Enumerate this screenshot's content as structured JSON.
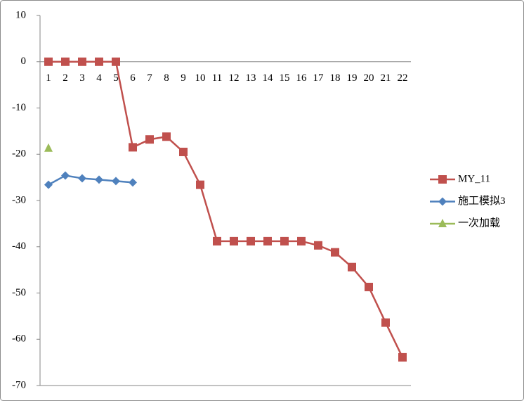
{
  "chart_data": {
    "type": "line",
    "categories": [
      "1",
      "2",
      "3",
      "4",
      "5",
      "6",
      "7",
      "8",
      "9",
      "10",
      "11",
      "12",
      "13",
      "14",
      "15",
      "16",
      "17",
      "18",
      "19",
      "20",
      "21",
      "22"
    ],
    "series": [
      {
        "name": "MY_11",
        "color": "#c0504d",
        "marker": "square",
        "values": [
          0,
          0,
          0,
          0,
          0,
          -18.5,
          -16.8,
          -16.2,
          -19.5,
          -26.6,
          -38.8,
          -38.8,
          -38.8,
          -38.8,
          -38.8,
          -38.8,
          -39.7,
          -41.2,
          -44.4,
          -48.7,
          -56.4,
          -63.9
        ]
      },
      {
        "name": "施工模拟3",
        "color": "#4f81bd",
        "marker": "diamond",
        "values": [
          -26.6,
          -24.6,
          -25.2,
          -25.5,
          -25.8,
          -26.1,
          null,
          null,
          null,
          null,
          null,
          null,
          null,
          null,
          null,
          null,
          null,
          null,
          null,
          null,
          null,
          null
        ]
      },
      {
        "name": "一次加载",
        "color": "#9bbb59",
        "marker": "triangle",
        "values": [
          -18.7,
          null,
          null,
          null,
          null,
          null,
          null,
          null,
          null,
          null,
          null,
          null,
          null,
          null,
          null,
          null,
          null,
          null,
          null,
          null,
          null,
          null
        ]
      }
    ],
    "ylim": [
      -70,
      10
    ],
    "yticks": [
      -70,
      -60,
      -50,
      -40,
      -30,
      -20,
      -10,
      0,
      10
    ],
    "grid": false,
    "legend": "right"
  }
}
